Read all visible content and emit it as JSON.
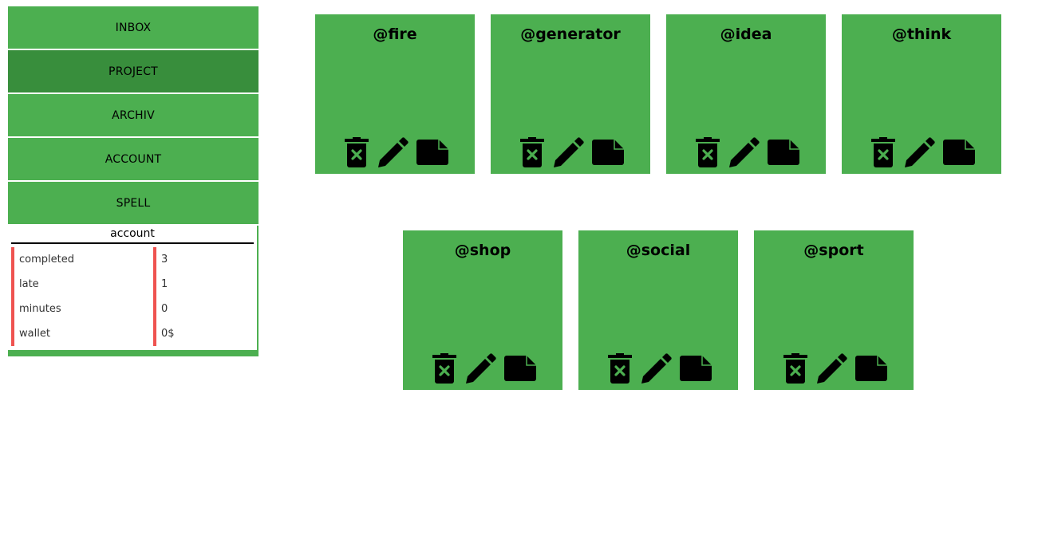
{
  "sidebar": {
    "items": [
      {
        "label": "INBOX"
      },
      {
        "label": "PROJECT"
      },
      {
        "label": "ARCHIV"
      },
      {
        "label": "ACCOUNT"
      },
      {
        "label": "SPELL"
      }
    ],
    "active_index": 1
  },
  "account": {
    "title": "account",
    "rows": [
      {
        "key": "completed",
        "value": "3"
      },
      {
        "key": "late",
        "value": "1"
      },
      {
        "key": "minutes",
        "value": "0"
      },
      {
        "key": "wallet",
        "value": "0$"
      }
    ]
  },
  "projects": [
    {
      "title": "@fire"
    },
    {
      "title": "@generator"
    },
    {
      "title": "@idea"
    },
    {
      "title": "@think"
    },
    {
      "title": "@shop"
    },
    {
      "title": "@social"
    },
    {
      "title": "@sport"
    }
  ],
  "icons": {
    "delete": "trash-x-icon",
    "edit": "pencil-icon",
    "open": "note-icon"
  },
  "colors": {
    "accent": "#4caf50",
    "accent_active": "#388e3c",
    "marker": "#ef5350"
  }
}
